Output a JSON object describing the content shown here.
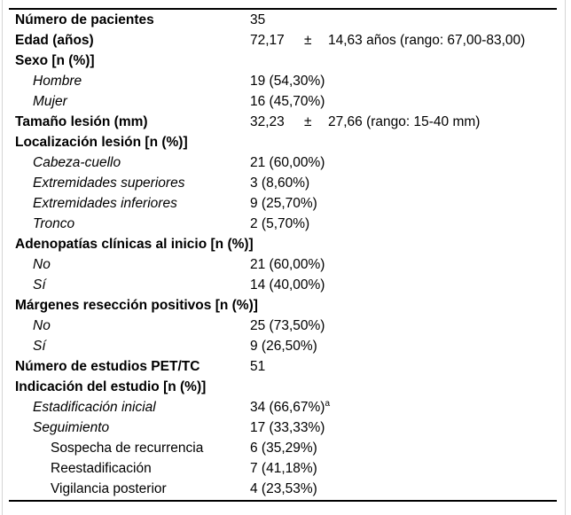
{
  "table": {
    "rows": [
      {
        "label": "Número de pacientes",
        "level": 1,
        "bold": true,
        "value": "35"
      },
      {
        "label": "Edad (años)",
        "level": 1,
        "bold": true,
        "v1": "72,17",
        "pm": "±",
        "v2": "14,63 años (rango: 67,00-83,00)"
      },
      {
        "label": "Sexo [n (%)]",
        "level": 1,
        "bold": true,
        "value": ""
      },
      {
        "label": "Hombre",
        "level": 2,
        "italic": true,
        "value": "19 (54,30%)"
      },
      {
        "label": "Mujer",
        "level": 2,
        "italic": true,
        "value": "16 (45,70%)"
      },
      {
        "label": "Tamaño lesión (mm)",
        "level": 1,
        "bold": true,
        "v1": "32,23",
        "pm": "±",
        "v2": "27,66 (rango: 15-40 mm)"
      },
      {
        "label": "Localización lesión [n (%)]",
        "level": 1,
        "bold": true,
        "value": ""
      },
      {
        "label": "Cabeza-cuello",
        "level": 2,
        "italic": true,
        "value": "21 (60,00%)"
      },
      {
        "label": "Extremidades superiores",
        "level": 2,
        "italic": true,
        "value": "3 (8,60%)"
      },
      {
        "label": "Extremidades inferiores",
        "level": 2,
        "italic": true,
        "value": "9 (25,70%)"
      },
      {
        "label": "Tronco",
        "level": 2,
        "italic": true,
        "value": "2 (5,70%)"
      },
      {
        "label": "Adenopatías clínicas al inicio [n (%)]",
        "level": 1,
        "bold": true,
        "value": ""
      },
      {
        "label": "No",
        "level": 2,
        "italic": true,
        "value": "21 (60,00%)"
      },
      {
        "label": "Sí",
        "level": 2,
        "italic": true,
        "value": "14 (40,00%)"
      },
      {
        "label": "Márgenes resección positivos [n (%)]",
        "level": 1,
        "bold": true,
        "value": ""
      },
      {
        "label": "No",
        "level": 2,
        "italic": true,
        "value": "25 (73,50%)"
      },
      {
        "label": "Sí",
        "level": 2,
        "italic": true,
        "value": "9 (26,50%)"
      },
      {
        "label": "Número de estudios PET/TC",
        "level": 1,
        "bold": true,
        "value": "51"
      },
      {
        "label": "Indicación del estudio [n (%)]",
        "level": 1,
        "bold": true,
        "value": ""
      },
      {
        "label": "Estadificación inicial",
        "level": 2,
        "italic": true,
        "value": "34 (66,67%)",
        "sup": "a"
      },
      {
        "label": "Seguimiento",
        "level": 2,
        "italic": true,
        "value": "17 (33,33%)"
      },
      {
        "label": "Sospecha de recurrencia",
        "level": 3,
        "value": "6 (35,29%)"
      },
      {
        "label": "Reestadificación",
        "level": 3,
        "value": "7 (41,18%)"
      },
      {
        "label": "Vigilancia posterior",
        "level": 3,
        "value": "4 (23,53%)"
      }
    ]
  }
}
